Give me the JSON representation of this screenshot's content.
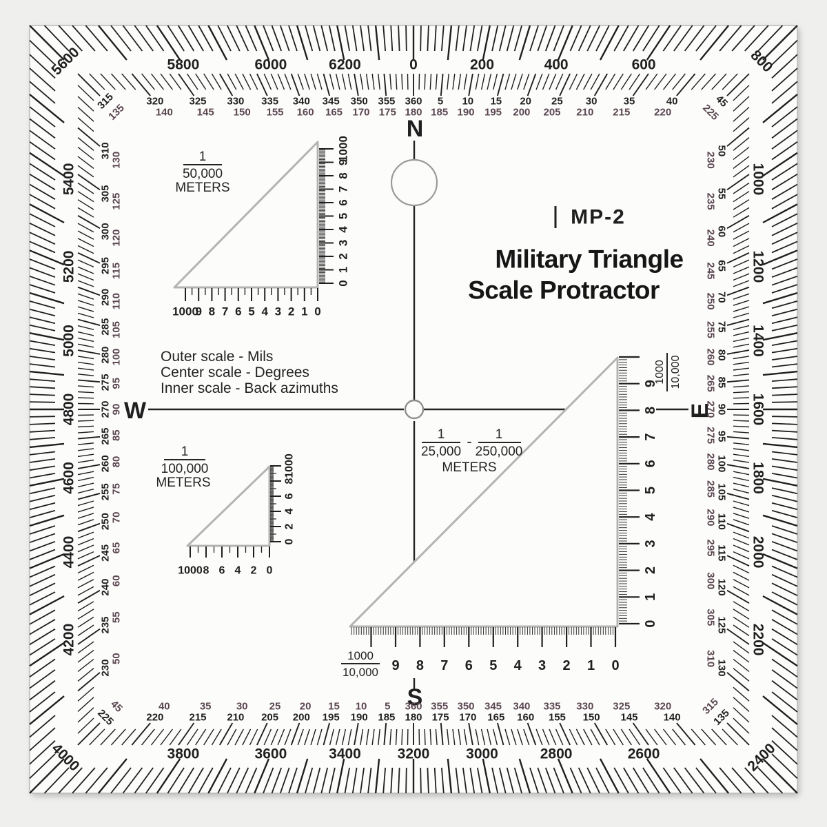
{
  "title": {
    "model": "MP-2",
    "line1": "Military Triangle",
    "line2": "Scale Protractor"
  },
  "legend": {
    "line1": "Outer scale - Mils",
    "line2": "Center scale - Degrees",
    "line3": "Inner scale - Back azimuths"
  },
  "compass": {
    "north": "N",
    "east": "E",
    "south": "S",
    "west": "W"
  },
  "colors": {
    "ink": "#1f1f1f",
    "back_azimuth": "#5a4650",
    "outline": "#b3b3b3",
    "tool_bg": "#fcfcfb",
    "page_bg": "#efefed"
  },
  "outer_scale": {
    "units": "mils",
    "full_circle": 6400,
    "minor_step": 20,
    "major_step": 100,
    "label_step": 200,
    "labels": [
      "0",
      "200",
      "400",
      "600",
      "800",
      "1000",
      "1200",
      "1400",
      "1600",
      "1800",
      "2000",
      "2200",
      "2400",
      "2600",
      "2800",
      "3000",
      "3200",
      "3400",
      "3600",
      "3800",
      "4000",
      "4200",
      "4400",
      "4600",
      "4800",
      "5000",
      "5200",
      "5400",
      "5600",
      "5800",
      "6000",
      "6200"
    ]
  },
  "degree_scale": {
    "units": "degrees",
    "minor_step": 1,
    "label_step": 5,
    "pairs": [
      [
        "360",
        "180"
      ],
      [
        "5",
        "185"
      ],
      [
        "10",
        "190"
      ],
      [
        "15",
        "195"
      ],
      [
        "20",
        "200"
      ],
      [
        "25",
        "205"
      ],
      [
        "30",
        "210"
      ],
      [
        "35",
        "215"
      ],
      [
        "40",
        "220"
      ],
      [
        "45",
        "225"
      ],
      [
        "50",
        "230"
      ],
      [
        "55",
        "235"
      ],
      [
        "60",
        "240"
      ],
      [
        "65",
        "245"
      ],
      [
        "70",
        "250"
      ],
      [
        "75",
        "255"
      ],
      [
        "80",
        "260"
      ],
      [
        "85",
        "265"
      ],
      [
        "90",
        "270"
      ],
      [
        "95",
        "275"
      ],
      [
        "100",
        "280"
      ],
      [
        "105",
        "285"
      ],
      [
        "110",
        "290"
      ],
      [
        "115",
        "295"
      ],
      [
        "120",
        "300"
      ],
      [
        "125",
        "305"
      ],
      [
        "130",
        "310"
      ],
      [
        "135",
        "315"
      ],
      [
        "140",
        "320"
      ],
      [
        "145",
        "325"
      ],
      [
        "150",
        "330"
      ],
      [
        "155",
        "335"
      ],
      [
        "160",
        "340"
      ],
      [
        "165",
        "345"
      ],
      [
        "170",
        "350"
      ],
      [
        "175",
        "355"
      ],
      [
        "180",
        "360"
      ],
      [
        "185",
        "5"
      ],
      [
        "190",
        "10"
      ],
      [
        "195",
        "15"
      ],
      [
        "200",
        "20"
      ],
      [
        "205",
        "25"
      ],
      [
        "210",
        "30"
      ],
      [
        "215",
        "35"
      ],
      [
        "220",
        "40"
      ],
      [
        "225",
        "45"
      ],
      [
        "230",
        "50"
      ],
      [
        "235",
        "55"
      ],
      [
        "240",
        "60"
      ],
      [
        "245",
        "65"
      ],
      [
        "250",
        "70"
      ],
      [
        "255",
        "75"
      ],
      [
        "260",
        "80"
      ],
      [
        "265",
        "85"
      ],
      [
        "270",
        "90"
      ],
      [
        "275",
        "95"
      ],
      [
        "280",
        "100"
      ],
      [
        "285",
        "105"
      ],
      [
        "290",
        "110"
      ],
      [
        "295",
        "115"
      ],
      [
        "300",
        "120"
      ],
      [
        "305",
        "125"
      ],
      [
        "310",
        "130"
      ],
      [
        "315",
        "135"
      ],
      [
        "320",
        "140"
      ],
      [
        "325",
        "145"
      ],
      [
        "330",
        "150"
      ],
      [
        "335",
        "155"
      ],
      [
        "340",
        "160"
      ],
      [
        "345",
        "165"
      ],
      [
        "350",
        "170"
      ],
      [
        "355",
        "175"
      ]
    ]
  },
  "triangles": [
    {
      "name": "scale-50000",
      "fraction_top": "1",
      "fraction_bottom": "50,000",
      "unit": "METERS",
      "bottom_labels": [
        "1000",
        "9",
        "8",
        "7",
        "6",
        "5",
        "4",
        "3",
        "2",
        "1",
        "0"
      ],
      "side_labels": [
        "0",
        "1",
        "2",
        "3",
        "4",
        "5",
        "6",
        "7",
        "8",
        "9",
        "1000"
      ]
    },
    {
      "name": "scale-100000",
      "fraction_top": "1",
      "fraction_bottom": "100,000",
      "unit": "METERS",
      "bottom_labels": [
        "1000",
        "8",
        "6",
        "4",
        "2",
        "0"
      ],
      "side_labels": [
        "0",
        "2",
        "4",
        "6",
        "8",
        "1000"
      ]
    },
    {
      "name": "scale-25000-250000",
      "fraction_a_top": "1",
      "fraction_a_bottom": "25,000",
      "dash": "-",
      "fraction_b_top": "1",
      "fraction_b_bottom": "250,000",
      "unit": "METERS",
      "corner_fraction_top": "1000",
      "corner_fraction_bottom": "10,000",
      "bottom_labels": [
        "9",
        "8",
        "7",
        "6",
        "5",
        "4",
        "3",
        "2",
        "1",
        "0"
      ],
      "side_labels": [
        "0",
        "1",
        "2",
        "3",
        "4",
        "5",
        "6",
        "7",
        "8",
        "9"
      ]
    }
  ]
}
